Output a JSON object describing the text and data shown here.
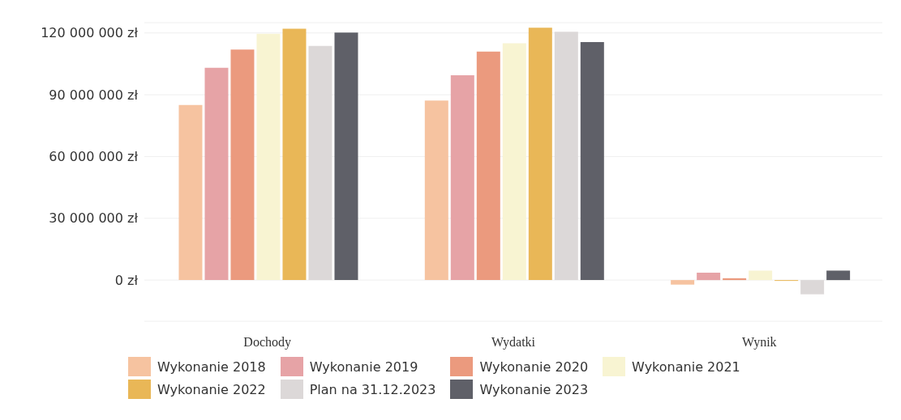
{
  "chart_data": {
    "type": "bar",
    "categories": [
      "Dochody",
      "Wydatki",
      "Wynik"
    ],
    "series": [
      {
        "name": "Wykonanie 2018",
        "color": "#f6c3a0",
        "values": [
          85000000,
          87200000,
          -2200000
        ]
      },
      {
        "name": "Wykonanie 2019",
        "color": "#e6a3a6",
        "values": [
          103100000,
          99500000,
          3600000
        ]
      },
      {
        "name": "Wykonanie 2020",
        "color": "#eb9a7e",
        "values": [
          111900000,
          111000000,
          900000
        ]
      },
      {
        "name": "Wykonanie 2021",
        "color": "#f8f4d2",
        "values": [
          119600000,
          115000000,
          4600000
        ]
      },
      {
        "name": "Wykonanie 2022",
        "color": "#e9b757",
        "values": [
          122100000,
          122500000,
          -400000
        ]
      },
      {
        "name": "Plan na 31.12.2023",
        "color": "#dcd8d8",
        "values": [
          113700000,
          120600000,
          -6900000
        ]
      },
      {
        "name": "Wykonanie 2023",
        "color": "#5f6068",
        "values": [
          120200000,
          115600000,
          4600000
        ]
      }
    ],
    "ylim": [
      -20000000,
      125000000
    ],
    "yticks": [
      {
        "value": 0,
        "label": "0 zł"
      },
      {
        "value": 30000000,
        "label": "30 000 000 zł"
      },
      {
        "value": 60000000,
        "label": "60 000 000 zł"
      },
      {
        "value": 90000000,
        "label": "90 000 000 zł"
      },
      {
        "value": 120000000,
        "label": "120 000 000 zł"
      }
    ],
    "grid": "y",
    "legend": "bottom"
  }
}
